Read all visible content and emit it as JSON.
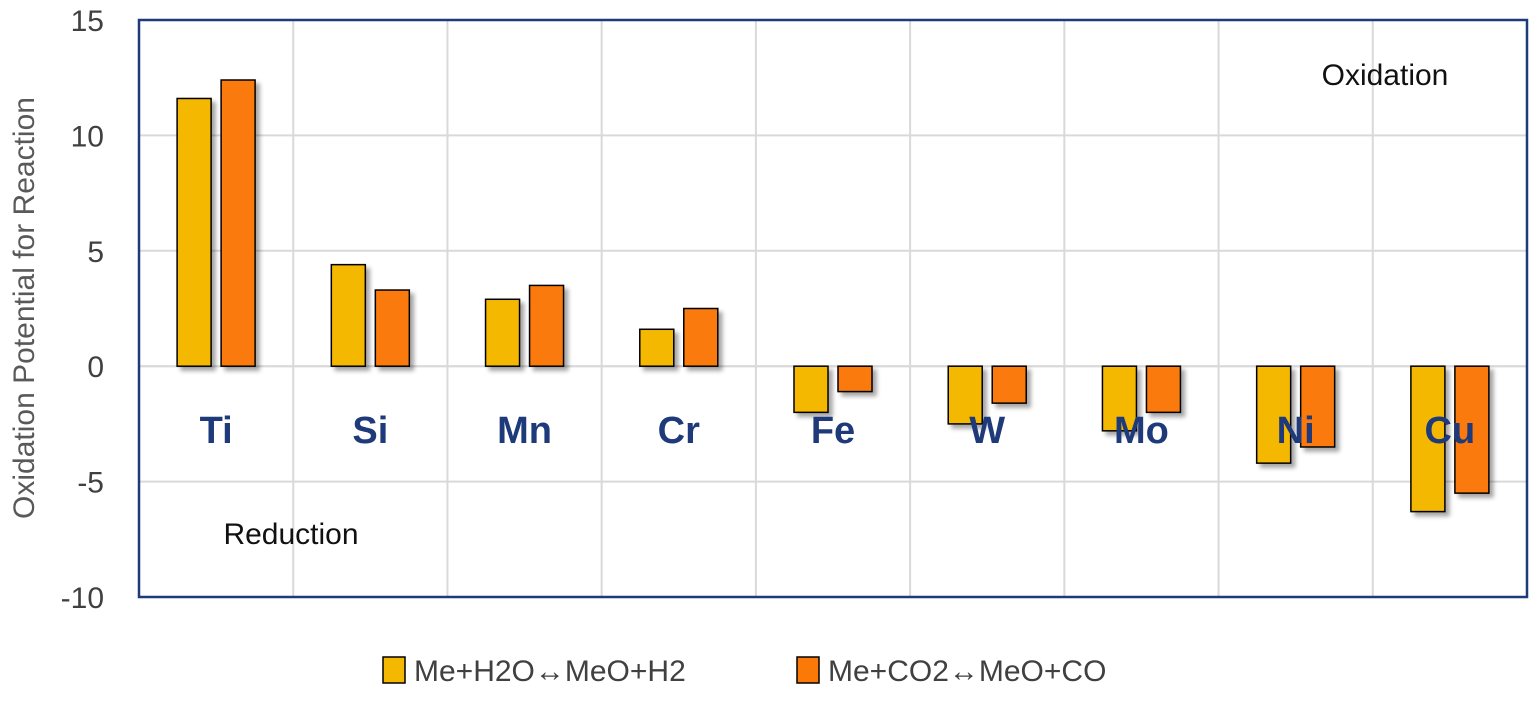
{
  "chart_data": {
    "type": "bar",
    "title": "",
    "xlabel": "",
    "ylabel": "Oxidation Potential for Reaction",
    "categories": [
      "Ti",
      "Si",
      "Mn",
      "Cr",
      "Fe",
      "W",
      "Mo",
      "Ni",
      "Cu"
    ],
    "series": [
      {
        "name": "Me+H2O↔MeO+H2",
        "color": "#f5b800",
        "values": [
          11.6,
          4.4,
          2.9,
          1.6,
          -2.0,
          -2.5,
          -2.8,
          -4.2,
          -6.3
        ]
      },
      {
        "name": "Me+CO2↔MeO+CO",
        "color": "#fb7a07",
        "values": [
          12.4,
          3.3,
          3.5,
          2.5,
          -1.1,
          -1.6,
          -2.0,
          -3.5,
          -5.5
        ]
      }
    ],
    "ylim": [
      -10,
      15
    ],
    "yticks": [
      15,
      10,
      5,
      0,
      -5,
      -10
    ],
    "grid": true,
    "legend_position": "bottom",
    "annotations": [
      "Oxidation",
      "Reduction"
    ]
  }
}
